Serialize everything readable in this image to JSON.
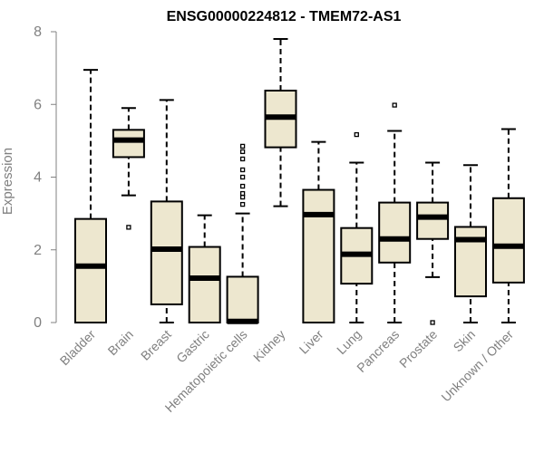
{
  "chart_data": {
    "type": "boxplot",
    "title": "ENSG00000224812 - TMEM72-AS1",
    "ylabel": "Expression",
    "xlabel": "",
    "ylim": [
      0,
      8
    ],
    "yticks": [
      "0",
      "2",
      "4",
      "6",
      "8"
    ],
    "grid": false,
    "colors": {
      "box_fill": "#ede7cf",
      "axis": "#808080"
    },
    "categories": [
      "Bladder",
      "Brain",
      "Breast",
      "Gastric",
      "Hematopoietic cells",
      "Kidney",
      "Liver",
      "Lung",
      "Pancreas",
      "Prostate",
      "Skin",
      "Unknown / Other"
    ],
    "boxes": [
      {
        "category": "Bladder",
        "min": 0,
        "q1": 0,
        "median": 1.55,
        "q3": 2.85,
        "max": 6.95,
        "outliers": []
      },
      {
        "category": "Brain",
        "min": 3.5,
        "q1": 4.55,
        "median": 5.02,
        "q3": 5.3,
        "max": 5.9,
        "outliers": [
          2.62
        ]
      },
      {
        "category": "Breast",
        "min": 0,
        "q1": 0.5,
        "median": 2.02,
        "q3": 3.33,
        "max": 6.12,
        "outliers": []
      },
      {
        "category": "Gastric",
        "min": 0,
        "q1": 0,
        "median": 1.22,
        "q3": 2.08,
        "max": 2.95,
        "outliers": []
      },
      {
        "category": "Hematopoietic cells",
        "min": 0,
        "q1": 0,
        "median": 0.03,
        "q3": 1.26,
        "max": 3.0,
        "outliers": [
          3.25,
          3.45,
          3.55,
          3.75,
          4.0,
          4.2,
          4.5,
          4.7,
          4.85
        ]
      },
      {
        "category": "Kidney",
        "min": 3.2,
        "q1": 4.82,
        "median": 5.65,
        "q3": 6.38,
        "max": 7.8,
        "outliers": []
      },
      {
        "category": "Liver",
        "min": 0,
        "q1": 0,
        "median": 2.97,
        "q3": 3.65,
        "max": 4.97,
        "outliers": []
      },
      {
        "category": "Lung",
        "min": 0,
        "q1": 1.07,
        "median": 1.88,
        "q3": 2.6,
        "max": 4.4,
        "outliers": [
          5.17
        ]
      },
      {
        "category": "Pancreas",
        "min": 0,
        "q1": 1.65,
        "median": 2.3,
        "q3": 3.3,
        "max": 5.27,
        "outliers": [
          5.98
        ]
      },
      {
        "category": "Prostate",
        "min": 1.25,
        "q1": 2.3,
        "median": 2.9,
        "q3": 3.3,
        "max": 4.4,
        "outliers": [
          0
        ]
      },
      {
        "category": "Skin",
        "min": 0,
        "q1": 0.72,
        "median": 2.28,
        "q3": 2.63,
        "max": 4.33,
        "outliers": []
      },
      {
        "category": "Unknown / Other",
        "min": 0,
        "q1": 1.1,
        "median": 2.1,
        "q3": 3.42,
        "max": 5.32,
        "outliers": []
      }
    ]
  }
}
